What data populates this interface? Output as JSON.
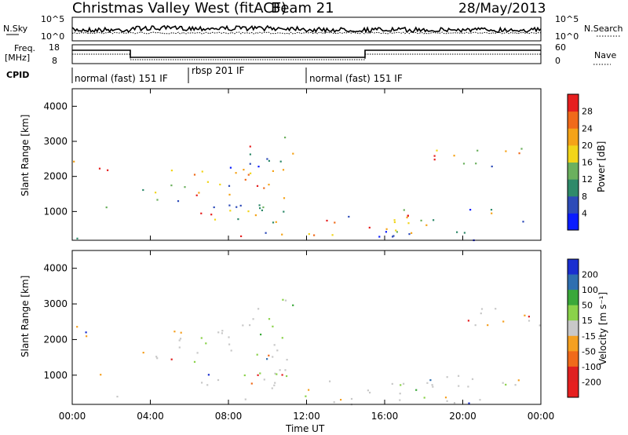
{
  "header": {
    "station": "Christmas Valley West (fitACF)",
    "beam": "Beam 21",
    "date": "28/May/2013"
  },
  "panels": {
    "nsky_label": "N.Sky",
    "nsearch_label": "N.Search",
    "nsky_ticks": [
      "10^5",
      "10^0"
    ],
    "nsearch_ticks": [
      "10^5",
      "10^0"
    ],
    "freq_label_1": "Freq.",
    "freq_label_2": "[MHz]",
    "freq_ticks": [
      "18",
      "8"
    ],
    "nave_label": "Nave",
    "nave_ticks": [
      "60",
      "0"
    ],
    "cpid_label": "CPID",
    "cpid_segments": [
      "normal (fast) 151 IF",
      "rbsp 201 IF",
      "normal (fast) 151 IF"
    ]
  },
  "chart_data": [
    {
      "type": "heatmap",
      "title": "",
      "ylabel": "Slant Range [km]",
      "xlabel": "",
      "ylim": [
        180,
        4500
      ],
      "yticks": [
        1000,
        2000,
        3000,
        4000
      ],
      "colorbar_label": "Power [dB]",
      "colorbar_ticks": [
        "4",
        "8",
        "12",
        "16",
        "20",
        "24",
        "28"
      ],
      "colorbar_colors": [
        "#0a1cff",
        "#2d4bb8",
        "#2f8a6a",
        "#6bb05e",
        "#f2d51a",
        "#f5a318",
        "#f06a1a",
        "#e61f1f"
      ]
    },
    {
      "type": "heatmap",
      "title": "",
      "ylabel": "Slant Range [km]",
      "xlabel": "Time UT",
      "ylim": [
        180,
        4500
      ],
      "yticks": [
        1000,
        2000,
        3000,
        4000
      ],
      "xticks": [
        "00:00",
        "04:00",
        "08:00",
        "12:00",
        "16:00",
        "20:00",
        "00:00"
      ],
      "colorbar_label": "Velocity [m s⁻¹]",
      "colorbar_ticks": [
        "200",
        "100",
        "50",
        "15",
        "-15",
        "-50",
        "-100",
        "-200"
      ],
      "colorbar_colors": [
        "#1a2fd0",
        "#2f6fb0",
        "#3aa83a",
        "#8ad24a",
        "#c8c8c8",
        "#f5a020",
        "#f06a1a",
        "#e02020",
        "#e61f1f"
      ]
    }
  ]
}
